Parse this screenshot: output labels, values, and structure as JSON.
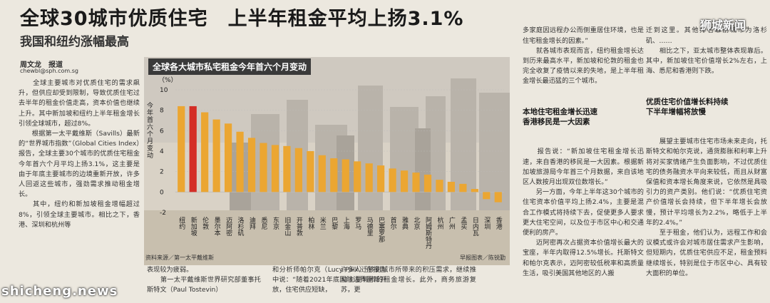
{
  "article": {
    "headline": "全球30城市优质住宅　上半年租金平均上扬3.1%",
    "subhead": "我国和纽约涨幅最高",
    "byline": "周文龙　报道",
    "email": "chewbl@sph.com.sg",
    "col1": "　　全球主要城市对优质住宅的需求飙升，但供应却受到限制，导致优质住宅过去半年的租金价值走高，资本价值也继续上升。其中新加坡和纽约上半年租金增长引领全球城市，超过8%。\n　　根据第一太平戴维斯（Savills）最新的“世界城市指数”（Global Cities Index）报告，全球主要30个城市的优质住宅租金今年首六个月平均上扬3.1%，这主要是由于年底主要城市的边境重新开放，许多人回返这些城市，强劲需求推动租金增长。\n　　其中，纽约和新加坡租金增幅超过8%，引领全球主要城市。相比之下，香港、深圳和杭州等",
    "col2": "表现较为疲弱。\n　　第一太平戴维斯世界研究部董事托斯特文（Paul Tostevin）",
    "col3": "和分析师帕尔克（Lucy Palk）在报告中说：“随着2021年底国际边界重新开放，住宅供应短缺，",
    "col4": "许多人迁移到城市所带来的积压需求，继续推动主要城市的租金增长。此外，商务旅游复苏，更",
    "col5a": "多家庭因远程办公而侧重居住环境，也是住宅租金增长的因素。”\n　　就各城市表现而言，纽约租金增长达到历来最高水平，新加坡和伦敦的租金也完全收复了疫情以来的失地，是上半年租金增长最迅猛的三个城市。",
    "col5head": "本地住宅租金增长迅速\n香港移民是一大因素",
    "col5b": "　　报告说：“新加坡住宅租金增长迅速，来自香港的移民是一大因素。根据新加坡旅游局今年首三个月数据，来自该地区人数按月出现双位数增长。”\n　　另一方面，今年上半年这30个城市的住宅资本价值平均上扬2.4%，主要是混合工作模式将持续下去，促使更多人要求更大住宅空间，以及位于市区中心和交通便利的房产。\n　　迈阿密再次占据资本价值增长最大的宝座，半年内取得12.5%增长。托斯特文和帕尔克表示，迈阿密较低税率和高质量生活，吸引美国其他地区的人搬",
    "col6a": "迁到这里。其他排名靠前城市为洛杉矶、……\n　　相比之下，亚太城市整体表现靠后。其中，新加坡住宅价值增长2%左右，上海、悉尼和香港则下跌。",
    "col6head": "优质住宅价值增长料持续\n下半年增幅将放慢",
    "col6b": "　　展望主要城市住宅市场未来走向，托斯特文和帕尔克说，通货膨胀和利率上升将对买家情绪产生负面影响，不过优质住宅的债务融资水平向来较低，而且从财富保值和资本增长角度来说，它依然是具吸引力的资产类别。他们说：“优质住宅资产价值增长会持续，但下半年增长会放慢，预计平均增长为2.2%，略低于上半年的2.4%。”\n　　至于租金，他们认为，远程工作和会议模式或许会对城市居住需求产生影响，但短期内，优质住宅供应不足，租金预料继续增长，特别是位于市区中心、具有较大面积的单位。"
  },
  "watermarks": {
    "top_right": "狮城新闻",
    "bottom_left": "shicheng.news"
  },
  "chart_data": {
    "type": "bar",
    "title": "全球各大城市私宅租金今年首六个月变动",
    "unit": "（%）",
    "ylabel": "今年首六个月变动",
    "ylim": [
      -2,
      10
    ],
    "yticks": [
      -2,
      0,
      2,
      4,
      6,
      8,
      10
    ],
    "categories": [
      "纽约",
      "新加坡",
      "伦敦",
      "墨尔本",
      "迈阿密",
      "洛杉矶",
      "迪拜",
      "悉尼",
      "东京",
      "旧金山",
      "开普敦",
      "柏林",
      "米兰",
      "巴黎",
      "上海",
      "罗马",
      "马德里",
      "巴塞罗那",
      "首尔",
      "雅典",
      "北京",
      "阿姆斯特丹",
      "杭州",
      "广州",
      "孟买",
      "日内瓦",
      "深圳",
      "香港"
    ],
    "values": [
      8.4,
      8.4,
      7.8,
      7.1,
      6.7,
      5.9,
      5.3,
      4.8,
      4.6,
      4.5,
      4.3,
      4.0,
      3.6,
      3.3,
      3.2,
      3.0,
      2.8,
      2.6,
      2.3,
      2.1,
      1.9,
      1.7,
      1.2,
      1.0,
      0.8,
      0.3,
      -0.7,
      -1.0
    ],
    "highlight": "新加坡",
    "bar_color": "#eba632",
    "highlight_color": "#d42e26",
    "source": "资料来源／第一太平戴维斯",
    "credit": "早报图表／陈锐勤"
  }
}
